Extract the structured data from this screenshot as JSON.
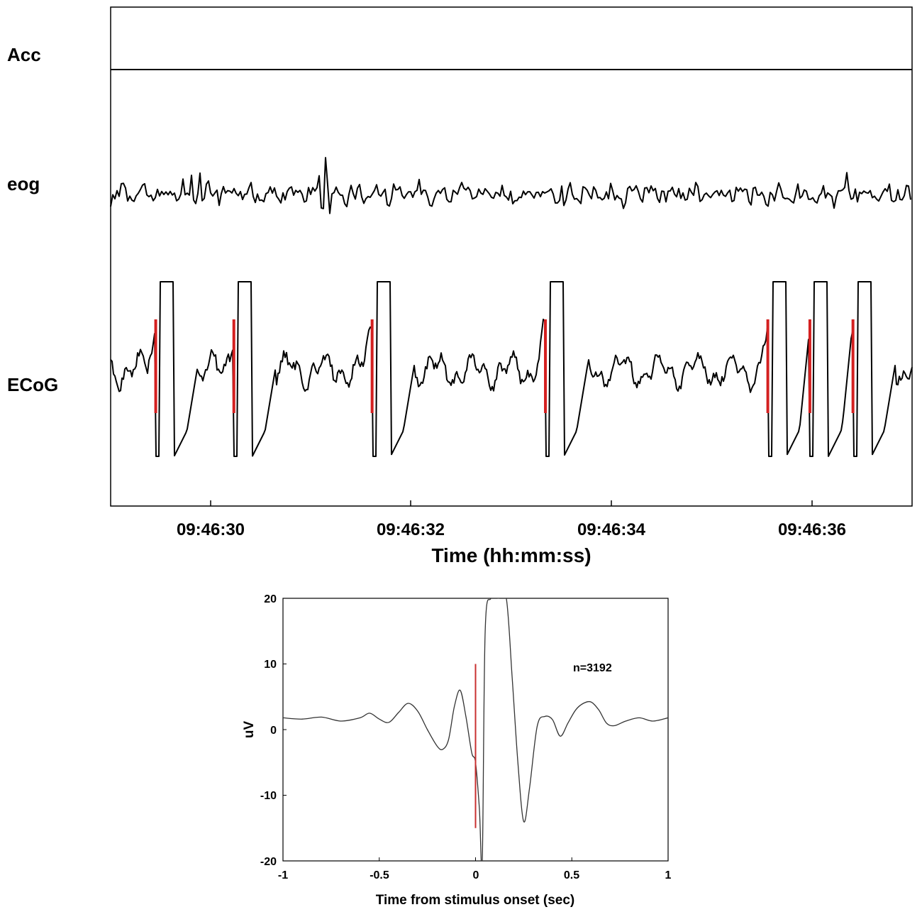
{
  "chart_data": [
    {
      "type": "line",
      "xlabel": "Time (hh:mm:ss)",
      "x_ticks": [
        "09:46:30",
        "09:46:32",
        "09:46:34",
        "09:46:36"
      ],
      "x_tick_values_sec": [
        30,
        32,
        34,
        36
      ],
      "xlim_sec": [
        28.9,
        36.9
      ],
      "channels": [
        {
          "name": "Acc",
          "trace": "flat"
        },
        {
          "name": "eog",
          "trace": "noisy",
          "prominent_deflection_sec": 31.05
        },
        {
          "name": "ECoG",
          "trace": "stimulus-locked, clipped responses"
        }
      ],
      "stimulus_times_sec": [
        29.35,
        30.13,
        31.51,
        33.24,
        35.46,
        35.88,
        36.31
      ],
      "stimulus_color": "#d42020",
      "trace_color": "#000000",
      "grid": false
    },
    {
      "type": "line",
      "xlabel": "Time from stimulus onset (sec)",
      "ylabel": "uV",
      "xlim": [
        -1,
        1
      ],
      "ylim": [
        -20,
        20
      ],
      "x_ticks": [
        "-1",
        "-0.5",
        "0",
        "0.5",
        "1"
      ],
      "x_tick_values": [
        -1,
        -0.5,
        0,
        0.5,
        1
      ],
      "y_ticks": [
        "20",
        "10",
        "0",
        "-10",
        "-20"
      ],
      "y_tick_values": [
        20,
        10,
        0,
        -10,
        -20
      ],
      "annotation": "n=3192",
      "stimulus_marker": {
        "x": 0,
        "y_from": -15,
        "y_to": 10,
        "color": "#c83030"
      },
      "series": [
        {
          "x": [
            -1,
            -0.9,
            -0.8,
            -0.7,
            -0.6,
            -0.55,
            -0.5,
            -0.45,
            -0.4,
            -0.35,
            -0.3,
            -0.25,
            -0.2,
            -0.17,
            -0.14,
            -0.11,
            -0.08,
            -0.05,
            -0.02,
            0,
            0.02,
            0.035,
            0.05,
            0.08,
            0.12,
            0.16,
            0.19,
            0.22,
            0.25,
            0.28,
            0.32,
            0.36,
            0.4,
            0.44,
            0.48,
            0.52,
            0.56,
            0.6,
            0.64,
            0.68,
            0.72,
            0.78,
            0.85,
            0.92,
            1
          ],
          "y": [
            1.8,
            1.6,
            1.9,
            1.3,
            1.8,
            2.5,
            1.6,
            1.1,
            2.6,
            4.0,
            2.8,
            0.0,
            -2.5,
            -3.0,
            -1.5,
            3.5,
            6.0,
            2.0,
            -3.5,
            -5.0,
            -12.0,
            -20.0,
            15.0,
            20.0,
            20.0,
            20.0,
            8.0,
            -5.0,
            -14.0,
            -9.0,
            0.5,
            2.0,
            1.5,
            -1.0,
            1.0,
            3.0,
            4.0,
            4.2,
            3.0,
            1.0,
            0.6,
            1.3,
            1.8,
            1.3,
            1.8
          ],
          "color": "#333333"
        }
      ]
    }
  ]
}
